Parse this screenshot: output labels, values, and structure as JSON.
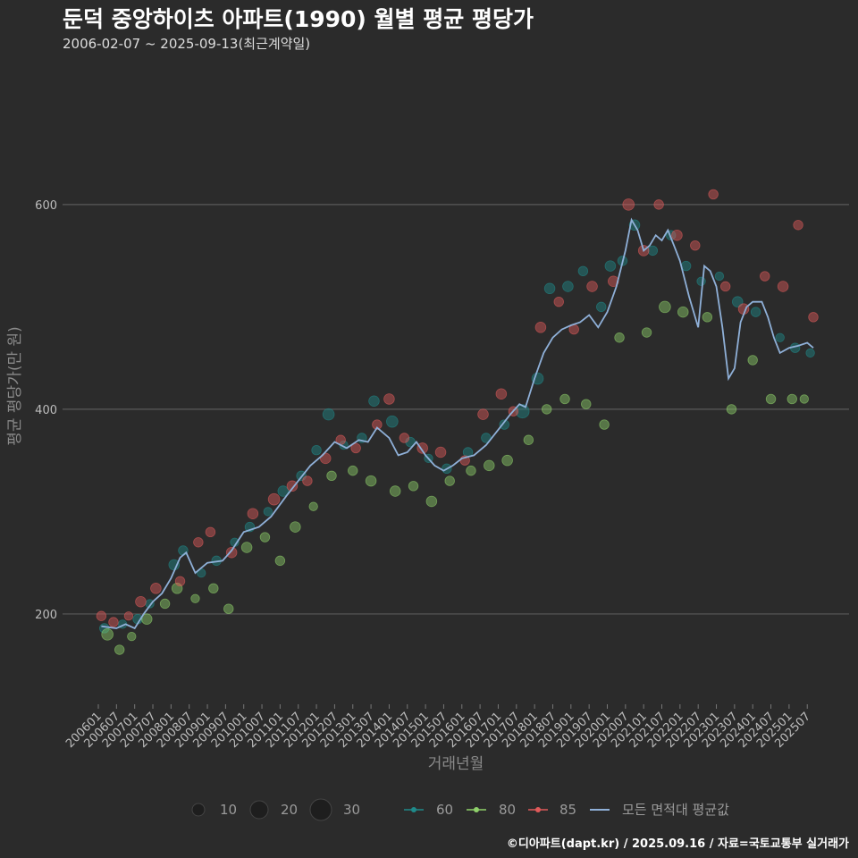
{
  "header": {
    "title": "둔덕 중앙하이츠 아파트(1990) 월별 평균 평당가",
    "subtitle": "2006-02-07 ~ 2025-09-13(최근계약일)"
  },
  "caption": "©디아파트(dapt.kr) / 2025.09.16 / 자료=국토교통부 실거래가",
  "colors": {
    "background": "#2b2b2b",
    "grid": "#5a5a5a",
    "area_60": "#1f8a8a",
    "area_80": "#8fd16b",
    "area_85": "#e05a5a",
    "average_line": "#8fb0d8"
  },
  "chart_data": {
    "type": "scatter",
    "xlabel": "거래년월",
    "ylabel": "평균 평당가(만 원)",
    "x_range": [
      "2006-01",
      "2025-09"
    ],
    "ylim": [
      110,
      730
    ],
    "y_ticks": [
      200,
      400,
      600
    ],
    "grid": "horizontal",
    "x_tick_labels": [
      "200601",
      "200607",
      "200701",
      "200707",
      "200801",
      "200807",
      "200901",
      "200907",
      "201001",
      "201007",
      "201101",
      "201107",
      "201201",
      "201207",
      "201301",
      "201307",
      "201401",
      "201407",
      "201501",
      "201507",
      "201601",
      "201607",
      "201701",
      "201707",
      "201801",
      "201807",
      "201901",
      "201907",
      "202001",
      "202007",
      "202101",
      "202107",
      "202201",
      "202207",
      "202301",
      "202307",
      "202401",
      "202407",
      "202501",
      "202507"
    ],
    "legend": {
      "placement": "bottom",
      "size_title": "",
      "sizes": [
        10,
        20,
        30
      ],
      "area_title": "",
      "areas": [
        "60",
        "80",
        "85"
      ],
      "average_label": "모든 면적대 평균값"
    },
    "average_line": {
      "name": "모든 면적대 평균값",
      "points": [
        [
          "2006-02",
          188
        ],
        [
          "2006-07",
          186
        ],
        [
          "2006-10",
          190
        ],
        [
          "2007-01",
          186
        ],
        [
          "2007-04",
          200
        ],
        [
          "2007-07",
          212
        ],
        [
          "2007-10",
          220
        ],
        [
          "2008-01",
          235
        ],
        [
          "2008-04",
          255
        ],
        [
          "2008-06",
          260
        ],
        [
          "2008-09",
          240
        ],
        [
          "2009-01",
          250
        ],
        [
          "2009-06",
          252
        ],
        [
          "2009-09",
          262
        ],
        [
          "2010-01",
          280
        ],
        [
          "2010-06",
          285
        ],
        [
          "2010-10",
          295
        ],
        [
          "2011-03",
          315
        ],
        [
          "2011-07",
          330
        ],
        [
          "2011-11",
          345
        ],
        [
          "2012-03",
          355
        ],
        [
          "2012-07",
          368
        ],
        [
          "2012-11",
          362
        ],
        [
          "2013-03",
          370
        ],
        [
          "2013-06",
          368
        ],
        [
          "2013-09",
          382
        ],
        [
          "2014-01",
          372
        ],
        [
          "2014-04",
          355
        ],
        [
          "2014-07",
          358
        ],
        [
          "2014-10",
          368
        ],
        [
          "2015-01",
          355
        ],
        [
          "2015-04",
          345
        ],
        [
          "2015-07",
          340
        ],
        [
          "2015-10",
          345
        ],
        [
          "2016-01",
          352
        ],
        [
          "2016-05",
          355
        ],
        [
          "2016-09",
          365
        ],
        [
          "2017-01",
          380
        ],
        [
          "2017-05",
          395
        ],
        [
          "2017-08",
          405
        ],
        [
          "2017-10",
          402
        ],
        [
          "2018-01",
          430
        ],
        [
          "2018-04",
          455
        ],
        [
          "2018-07",
          470
        ],
        [
          "2018-10",
          478
        ],
        [
          "2019-01",
          482
        ],
        [
          "2019-04",
          485
        ],
        [
          "2019-07",
          492
        ],
        [
          "2019-10",
          480
        ],
        [
          "2020-01",
          495
        ],
        [
          "2020-04",
          520
        ],
        [
          "2020-07",
          555
        ],
        [
          "2020-09",
          585
        ],
        [
          "2020-11",
          575
        ],
        [
          "2021-01",
          555
        ],
        [
          "2021-03",
          560
        ],
        [
          "2021-05",
          570
        ],
        [
          "2021-07",
          565
        ],
        [
          "2021-09",
          575
        ],
        [
          "2021-11",
          560
        ],
        [
          "2022-01",
          545
        ],
        [
          "2022-04",
          510
        ],
        [
          "2022-07",
          480
        ],
        [
          "2022-09",
          540
        ],
        [
          "2022-11",
          535
        ],
        [
          "2023-01",
          520
        ],
        [
          "2023-03",
          480
        ],
        [
          "2023-05",
          430
        ],
        [
          "2023-07",
          440
        ],
        [
          "2023-09",
          485
        ],
        [
          "2023-11",
          500
        ],
        [
          "2024-01",
          505
        ],
        [
          "2024-04",
          505
        ],
        [
          "2024-06",
          490
        ],
        [
          "2024-08",
          470
        ],
        [
          "2024-10",
          455
        ],
        [
          "2025-01",
          460
        ],
        [
          "2025-04",
          462
        ],
        [
          "2025-07",
          465
        ],
        [
          "2025-09",
          460
        ]
      ]
    },
    "series": [
      {
        "name": "60",
        "points": [
          [
            "2006-03",
            186,
            6
          ],
          [
            "2006-09",
            190,
            5
          ],
          [
            "2007-02",
            195,
            6
          ],
          [
            "2007-06",
            210,
            5
          ],
          [
            "2008-02",
            248,
            7
          ],
          [
            "2008-05",
            262,
            6
          ],
          [
            "2008-11",
            240,
            5
          ],
          [
            "2009-04",
            252,
            6
          ],
          [
            "2009-10",
            270,
            5
          ],
          [
            "2010-03",
            285,
            6
          ],
          [
            "2010-09",
            300,
            5
          ],
          [
            "2011-02",
            320,
            7
          ],
          [
            "2011-08",
            335,
            6
          ],
          [
            "2012-01",
            360,
            6
          ],
          [
            "2012-05",
            395,
            8
          ],
          [
            "2012-10",
            365,
            5
          ],
          [
            "2013-04",
            372,
            6
          ],
          [
            "2013-08",
            408,
            7
          ],
          [
            "2014-02",
            388,
            8
          ],
          [
            "2014-08",
            368,
            6
          ],
          [
            "2015-02",
            352,
            5
          ],
          [
            "2015-08",
            342,
            6
          ],
          [
            "2016-03",
            358,
            6
          ],
          [
            "2016-09",
            372,
            6
          ],
          [
            "2017-03",
            385,
            6
          ],
          [
            "2017-09",
            398,
            10
          ],
          [
            "2018-02",
            430,
            8
          ],
          [
            "2018-06",
            518,
            7
          ],
          [
            "2018-12",
            520,
            7
          ],
          [
            "2019-05",
            535,
            6
          ],
          [
            "2019-11",
            500,
            6
          ],
          [
            "2020-02",
            540,
            7
          ],
          [
            "2020-06",
            545,
            6
          ],
          [
            "2020-10",
            580,
            7
          ],
          [
            "2021-04",
            555,
            6
          ],
          [
            "2021-10",
            570,
            6
          ],
          [
            "2022-03",
            540,
            6
          ],
          [
            "2022-08",
            525,
            5
          ],
          [
            "2023-02",
            530,
            5
          ],
          [
            "2023-08",
            505,
            7
          ],
          [
            "2024-02",
            495,
            6
          ],
          [
            "2024-10",
            470,
            5
          ],
          [
            "2025-03",
            460,
            6
          ],
          [
            "2025-08",
            455,
            5
          ]
        ]
      },
      {
        "name": "80",
        "points": [
          [
            "2006-04",
            180,
            8
          ],
          [
            "2006-08",
            165,
            6
          ],
          [
            "2006-12",
            178,
            5
          ],
          [
            "2007-05",
            195,
            7
          ],
          [
            "2007-11",
            210,
            6
          ],
          [
            "2008-03",
            225,
            7
          ],
          [
            "2008-09",
            215,
            5
          ],
          [
            "2009-03",
            225,
            6
          ],
          [
            "2009-08",
            205,
            6
          ],
          [
            "2010-02",
            265,
            7
          ],
          [
            "2010-08",
            275,
            6
          ],
          [
            "2011-01",
            252,
            6
          ],
          [
            "2011-06",
            285,
            7
          ],
          [
            "2011-12",
            305,
            5
          ],
          [
            "2012-06",
            335,
            6
          ],
          [
            "2013-01",
            340,
            6
          ],
          [
            "2013-07",
            330,
            7
          ],
          [
            "2014-03",
            320,
            7
          ],
          [
            "2014-09",
            325,
            6
          ],
          [
            "2015-03",
            310,
            7
          ],
          [
            "2015-09",
            330,
            6
          ],
          [
            "2016-04",
            340,
            6
          ],
          [
            "2016-10",
            345,
            7
          ],
          [
            "2017-04",
            350,
            7
          ],
          [
            "2017-11",
            370,
            6
          ],
          [
            "2018-05",
            400,
            6
          ],
          [
            "2018-11",
            410,
            6
          ],
          [
            "2019-06",
            405,
            6
          ],
          [
            "2019-12",
            385,
            6
          ],
          [
            "2020-05",
            470,
            6
          ],
          [
            "2021-02",
            475,
            6
          ],
          [
            "2021-08",
            500,
            8
          ],
          [
            "2022-02",
            495,
            7
          ],
          [
            "2022-10",
            490,
            6
          ],
          [
            "2023-06",
            400,
            6
          ],
          [
            "2024-01",
            448,
            6
          ],
          [
            "2024-07",
            410,
            6
          ],
          [
            "2025-02",
            410,
            6
          ],
          [
            "2025-06",
            410,
            5
          ]
        ]
      },
      {
        "name": "85",
        "points": [
          [
            "2006-02",
            198,
            6
          ],
          [
            "2006-06",
            192,
            6
          ],
          [
            "2006-11",
            198,
            5
          ],
          [
            "2007-03",
            212,
            7
          ],
          [
            "2007-08",
            225,
            7
          ],
          [
            "2008-04",
            232,
            6
          ],
          [
            "2008-10",
            270,
            6
          ],
          [
            "2009-02",
            280,
            6
          ],
          [
            "2009-09",
            260,
            7
          ],
          [
            "2010-04",
            298,
            7
          ],
          [
            "2010-11",
            312,
            8
          ],
          [
            "2011-05",
            325,
            7
          ],
          [
            "2011-10",
            330,
            6
          ],
          [
            "2012-04",
            352,
            7
          ],
          [
            "2012-09",
            370,
            6
          ],
          [
            "2013-02",
            362,
            6
          ],
          [
            "2013-09",
            385,
            6
          ],
          [
            "2014-01",
            410,
            7
          ],
          [
            "2014-06",
            372,
            6
          ],
          [
            "2014-12",
            362,
            7
          ],
          [
            "2015-06",
            358,
            7
          ],
          [
            "2016-02",
            350,
            6
          ],
          [
            "2016-08",
            395,
            7
          ],
          [
            "2017-02",
            415,
            7
          ],
          [
            "2017-06",
            398,
            6
          ],
          [
            "2018-03",
            480,
            7
          ],
          [
            "2018-09",
            505,
            6
          ],
          [
            "2019-02",
            478,
            6
          ],
          [
            "2019-08",
            520,
            7
          ],
          [
            "2020-03",
            525,
            7
          ],
          [
            "2020-08",
            600,
            8
          ],
          [
            "2021-01",
            555,
            7
          ],
          [
            "2021-06",
            600,
            6
          ],
          [
            "2021-12",
            570,
            7
          ],
          [
            "2022-06",
            560,
            6
          ],
          [
            "2022-12",
            610,
            6
          ],
          [
            "2023-04",
            520,
            6
          ],
          [
            "2023-10",
            498,
            7
          ],
          [
            "2024-05",
            530,
            6
          ],
          [
            "2024-11",
            520,
            7
          ],
          [
            "2025-04",
            580,
            6
          ],
          [
            "2025-09",
            490,
            6
          ]
        ]
      }
    ]
  }
}
